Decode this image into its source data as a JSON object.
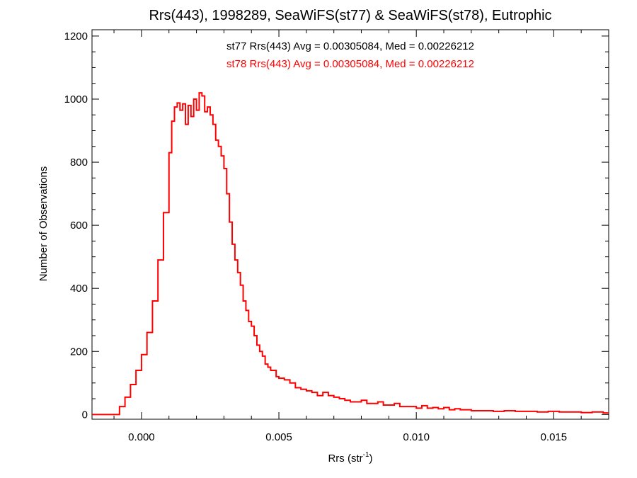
{
  "chart_data": {
    "type": "histogram",
    "title": "Rrs(443), 1998289, SeaWiFS(st77) & SeaWiFS(st78), Eutrophic",
    "xlabel": "Rrs (str",
    "xlabel_sup": "-1",
    "xlabel_close": ")",
    "ylabel": "Number of Observations",
    "xlim": [
      -0.0018,
      0.017
    ],
    "ylim": [
      -15,
      1220
    ],
    "x_ticks": [
      0.0,
      0.005,
      0.01,
      0.015
    ],
    "x_tick_labels": [
      "0.000",
      "0.005",
      "0.010",
      "0.015"
    ],
    "y_ticks": [
      0,
      200,
      400,
      600,
      800,
      1000,
      1200
    ],
    "y_tick_labels": [
      "0",
      "200",
      "400",
      "600",
      "800",
      "1000",
      "1200"
    ],
    "grid": false,
    "annotations": [
      {
        "text": "st77 Rrs(443) Avg = 0.00305084, Med = 0.00226212",
        "color": "#000000"
      },
      {
        "text": "st78 Rrs(443) Avg = 0.00305084, Med = 0.00226212",
        "color": "#ff0000"
      }
    ],
    "series": [
      {
        "color": "#ff0000",
        "points": [
          [
            -0.0018,
            0
          ],
          [
            -0.001,
            0
          ],
          [
            -0.0008,
            25
          ],
          [
            -0.0006,
            55
          ],
          [
            -0.0004,
            95
          ],
          [
            -0.0002,
            140
          ],
          [
            0.0,
            190
          ],
          [
            0.0002,
            260
          ],
          [
            0.0004,
            360
          ],
          [
            0.0006,
            490
          ],
          [
            0.0008,
            640
          ],
          [
            0.001,
            830
          ],
          [
            0.0011,
            930
          ],
          [
            0.0012,
            975
          ],
          [
            0.0013,
            988
          ],
          [
            0.0014,
            965
          ],
          [
            0.0015,
            985
          ],
          [
            0.0016,
            920
          ],
          [
            0.0017,
            980
          ],
          [
            0.0018,
            945
          ],
          [
            0.0019,
            1000
          ],
          [
            0.002,
            965
          ],
          [
            0.0021,
            1020
          ],
          [
            0.0022,
            1010
          ],
          [
            0.0023,
            960
          ],
          [
            0.0024,
            975
          ],
          [
            0.0025,
            950
          ],
          [
            0.0026,
            920
          ],
          [
            0.0027,
            870
          ],
          [
            0.0028,
            850
          ],
          [
            0.0029,
            820
          ],
          [
            0.003,
            780
          ],
          [
            0.0031,
            700
          ],
          [
            0.0032,
            610
          ],
          [
            0.0033,
            540
          ],
          [
            0.0034,
            490
          ],
          [
            0.0035,
            450
          ],
          [
            0.0036,
            410
          ],
          [
            0.0037,
            360
          ],
          [
            0.0038,
            330
          ],
          [
            0.0039,
            295
          ],
          [
            0.004,
            280
          ],
          [
            0.0041,
            250
          ],
          [
            0.0042,
            220
          ],
          [
            0.0043,
            200
          ],
          [
            0.0044,
            185
          ],
          [
            0.0045,
            160
          ],
          [
            0.0046,
            150
          ],
          [
            0.0047,
            140
          ],
          [
            0.0048,
            140
          ],
          [
            0.0049,
            120
          ],
          [
            0.005,
            115
          ],
          [
            0.0052,
            110
          ],
          [
            0.0054,
            100
          ],
          [
            0.0056,
            85
          ],
          [
            0.0058,
            80
          ],
          [
            0.006,
            75
          ],
          [
            0.0062,
            70
          ],
          [
            0.0064,
            60
          ],
          [
            0.0066,
            70
          ],
          [
            0.0068,
            60
          ],
          [
            0.007,
            55
          ],
          [
            0.0072,
            50
          ],
          [
            0.0074,
            45
          ],
          [
            0.0076,
            40
          ],
          [
            0.0078,
            40
          ],
          [
            0.008,
            45
          ],
          [
            0.0082,
            35
          ],
          [
            0.0084,
            35
          ],
          [
            0.0086,
            40
          ],
          [
            0.0088,
            30
          ],
          [
            0.009,
            30
          ],
          [
            0.0092,
            35
          ],
          [
            0.0094,
            25
          ],
          [
            0.0096,
            25
          ],
          [
            0.0098,
            25
          ],
          [
            0.01,
            20
          ],
          [
            0.0102,
            28
          ],
          [
            0.0104,
            20
          ],
          [
            0.0106,
            22
          ],
          [
            0.0108,
            18
          ],
          [
            0.011,
            22
          ],
          [
            0.0112,
            15
          ],
          [
            0.0114,
            18
          ],
          [
            0.0116,
            15
          ],
          [
            0.0118,
            15
          ],
          [
            0.012,
            12
          ],
          [
            0.0124,
            12
          ],
          [
            0.0128,
            10
          ],
          [
            0.0132,
            12
          ],
          [
            0.0136,
            10
          ],
          [
            0.014,
            10
          ],
          [
            0.0144,
            8
          ],
          [
            0.0148,
            10
          ],
          [
            0.0152,
            8
          ],
          [
            0.0156,
            8
          ],
          [
            0.016,
            6
          ],
          [
            0.0164,
            8
          ],
          [
            0.0168,
            5
          ],
          [
            0.017,
            5
          ]
        ]
      }
    ]
  }
}
